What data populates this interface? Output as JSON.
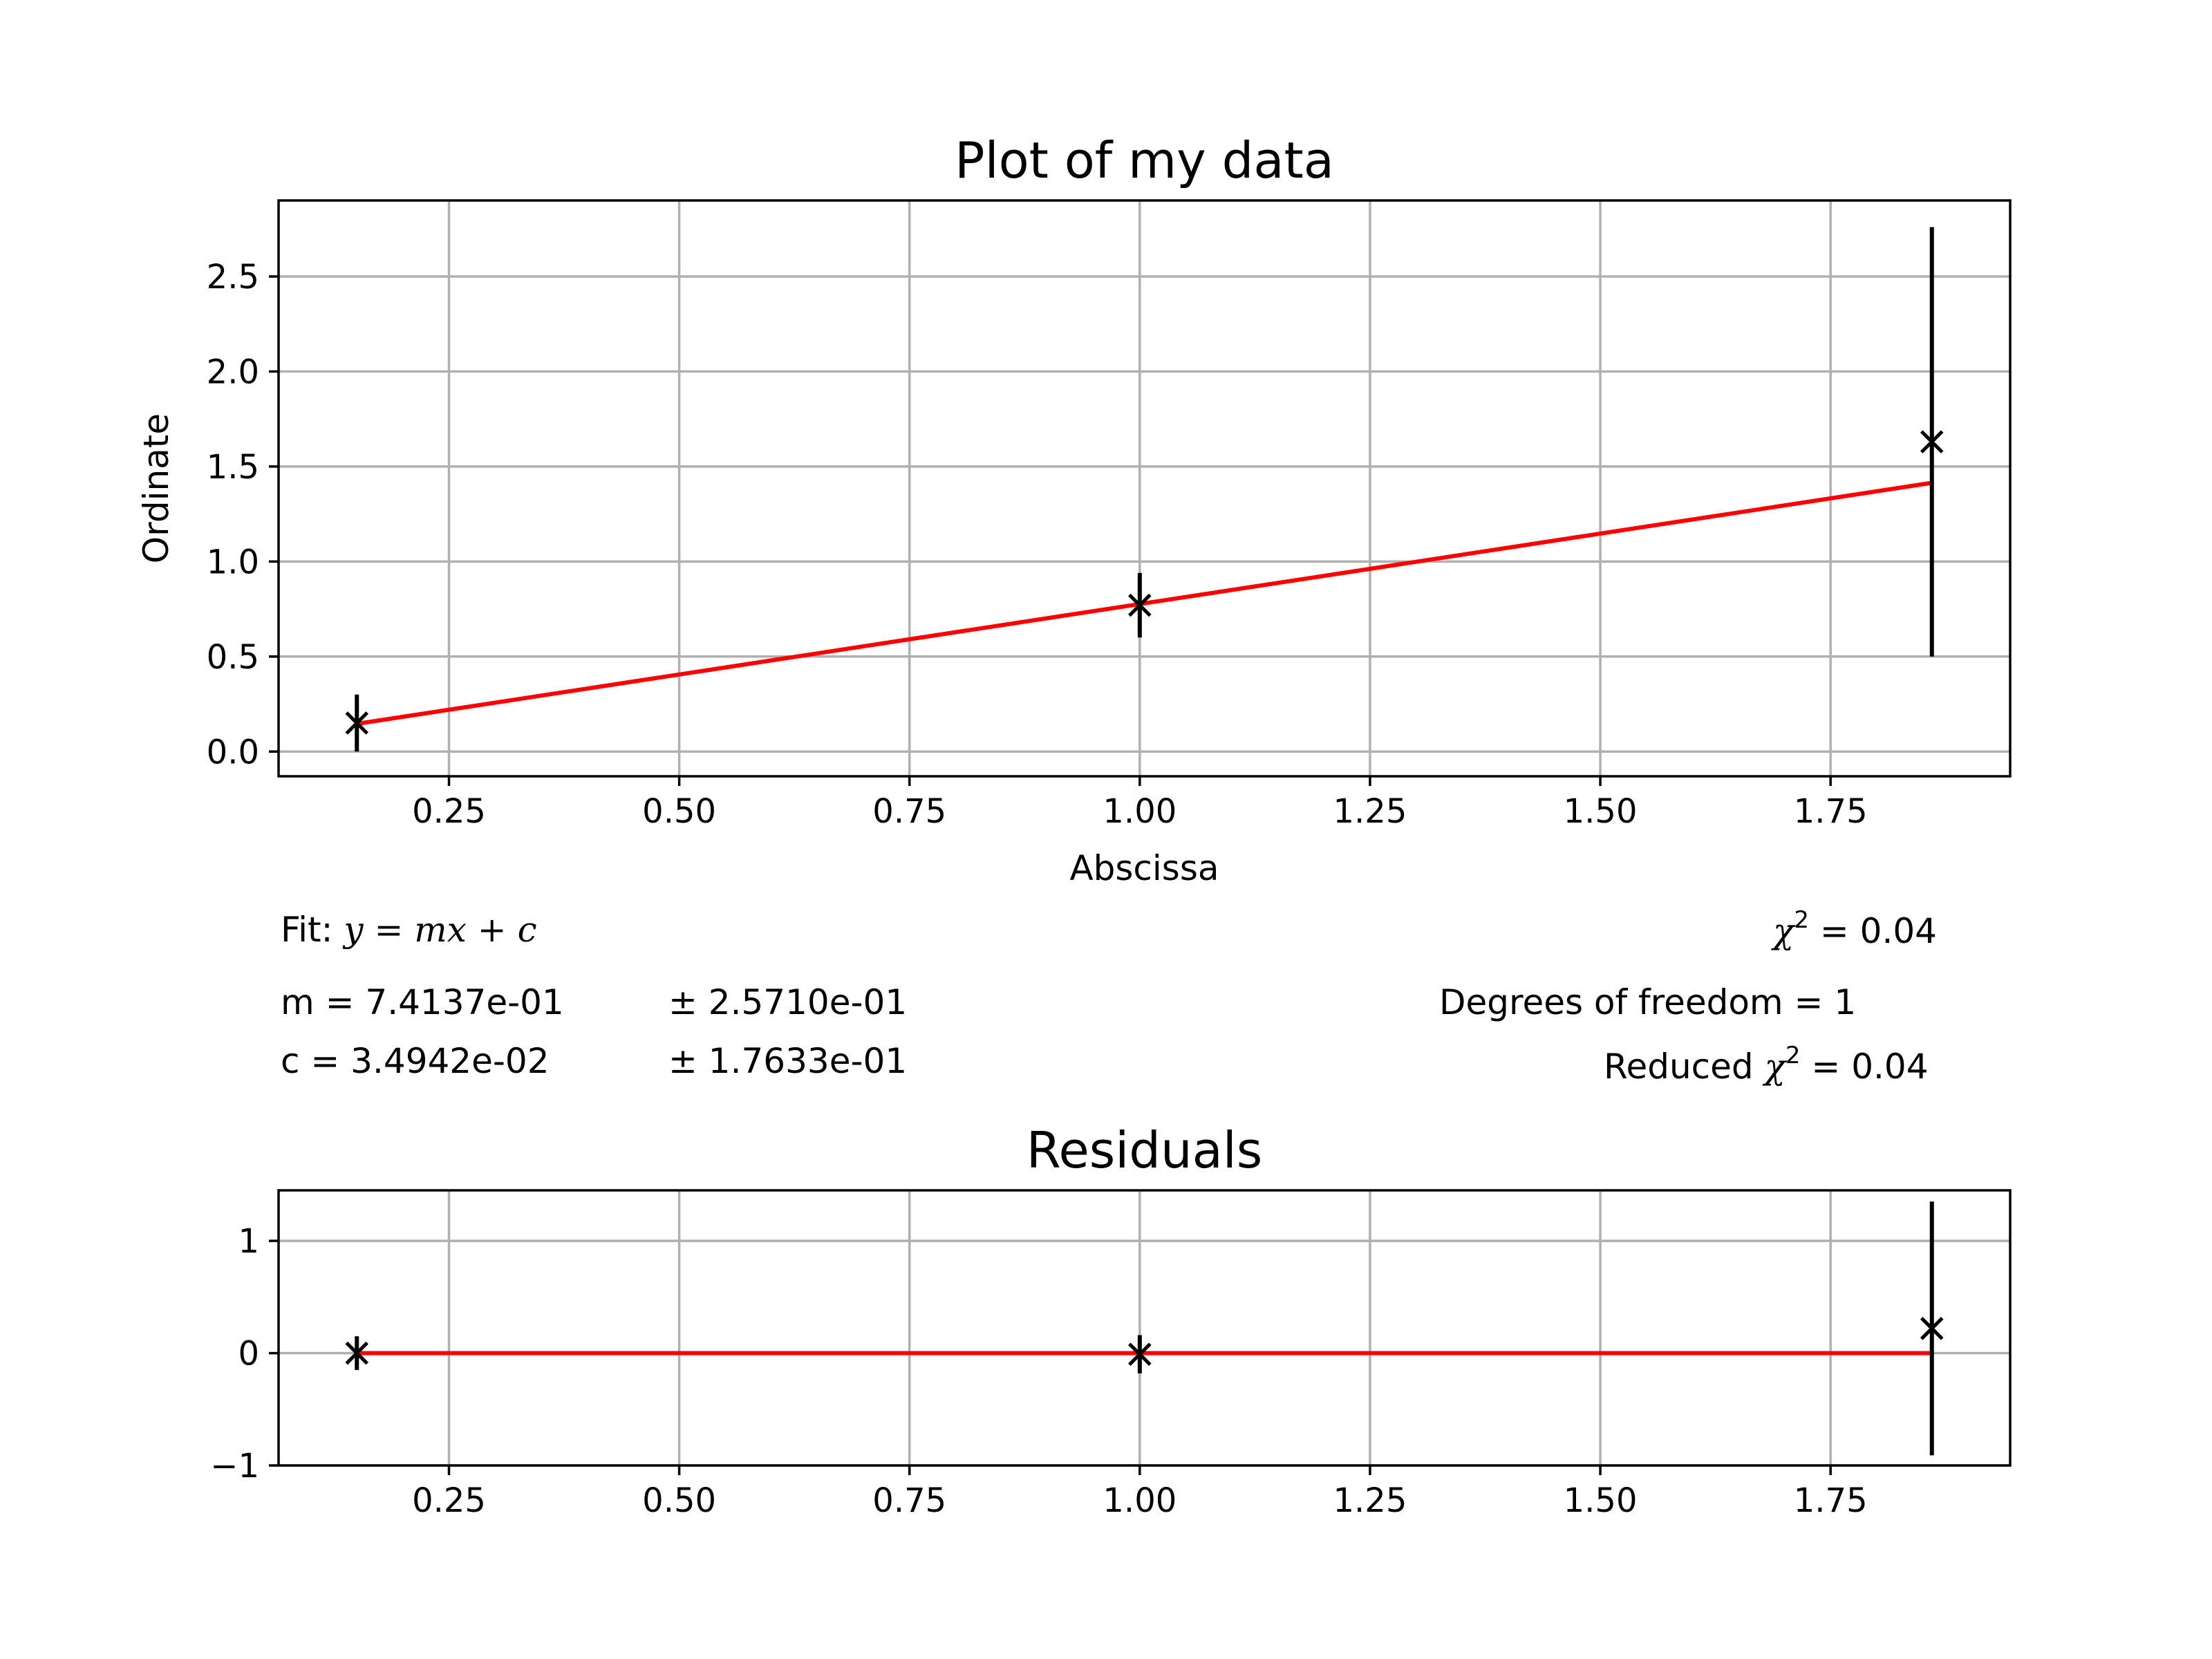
{
  "chart_data": [
    {
      "type": "scatter",
      "title": "Plot of my data",
      "xlabel": "Abscissa",
      "ylabel": "Ordinate",
      "xlim": [
        0.065,
        1.945
      ],
      "ylim": [
        -0.13,
        2.9
      ],
      "xticks": [
        0.25,
        0.5,
        0.75,
        1.0,
        1.25,
        1.5,
        1.75
      ],
      "xtick_labels": [
        "0.25",
        "0.50",
        "0.75",
        "1.00",
        "1.25",
        "1.50",
        "1.75"
      ],
      "yticks": [
        0.0,
        0.5,
        1.0,
        1.5,
        2.0,
        2.5
      ],
      "ytick_labels": [
        "0.0",
        "0.5",
        "1.0",
        "1.5",
        "2.0",
        "2.5"
      ],
      "grid": true,
      "series": [
        {
          "kind": "errorbar",
          "marker": "x",
          "color": "#000000",
          "x": [
            0.15,
            1.0,
            1.86
          ],
          "y": [
            0.15,
            0.77,
            1.63
          ],
          "yerr": [
            0.15,
            0.17,
            1.13
          ]
        },
        {
          "kind": "line",
          "color": "#ff0000",
          "x": [
            0.15,
            1.86
          ],
          "y": [
            0.146,
            1.414
          ]
        }
      ]
    },
    {
      "type": "scatter",
      "title": "Residuals",
      "xlim": [
        0.065,
        1.945
      ],
      "ylim": [
        -1.0,
        1.45
      ],
      "xticks": [
        0.25,
        0.5,
        0.75,
        1.0,
        1.25,
        1.5,
        1.75
      ],
      "xtick_labels": [
        "0.25",
        "0.50",
        "0.75",
        "1.00",
        "1.25",
        "1.50",
        "1.75"
      ],
      "yticks": [
        -1,
        0,
        1
      ],
      "ytick_labels": [
        "−1",
        "0",
        "1"
      ],
      "grid": true,
      "series": [
        {
          "kind": "errorbar",
          "marker": "x",
          "color": "#000000",
          "x": [
            0.15,
            1.0,
            1.86
          ],
          "y": [
            0.0,
            -0.01,
            0.22
          ],
          "yerr": [
            0.15,
            0.17,
            1.13
          ]
        },
        {
          "kind": "line",
          "color": "#ff0000",
          "x": [
            0.15,
            1.86
          ],
          "y": [
            0.0,
            0.0
          ]
        }
      ]
    }
  ],
  "fit_info": {
    "fit_prefix": "Fit: ",
    "fit_eq": "y = mx + c",
    "m_line": "m = 7.4137e-01",
    "m_err": "± 2.5710e-01",
    "c_line": "c = 3.4942e-02",
    "c_err": "± 1.7633e-01",
    "chi_symbol": "χ",
    "chi_exp": "2",
    "chi_value": " = 0.04",
    "dof": "Degrees of freedom = 1",
    "reduced_prefix": "Reduced ",
    "reduced_value": " = 0.04"
  },
  "colors": {
    "fit_line": "#ff0000",
    "points": "#000000",
    "grid": "#b0b0b0"
  }
}
